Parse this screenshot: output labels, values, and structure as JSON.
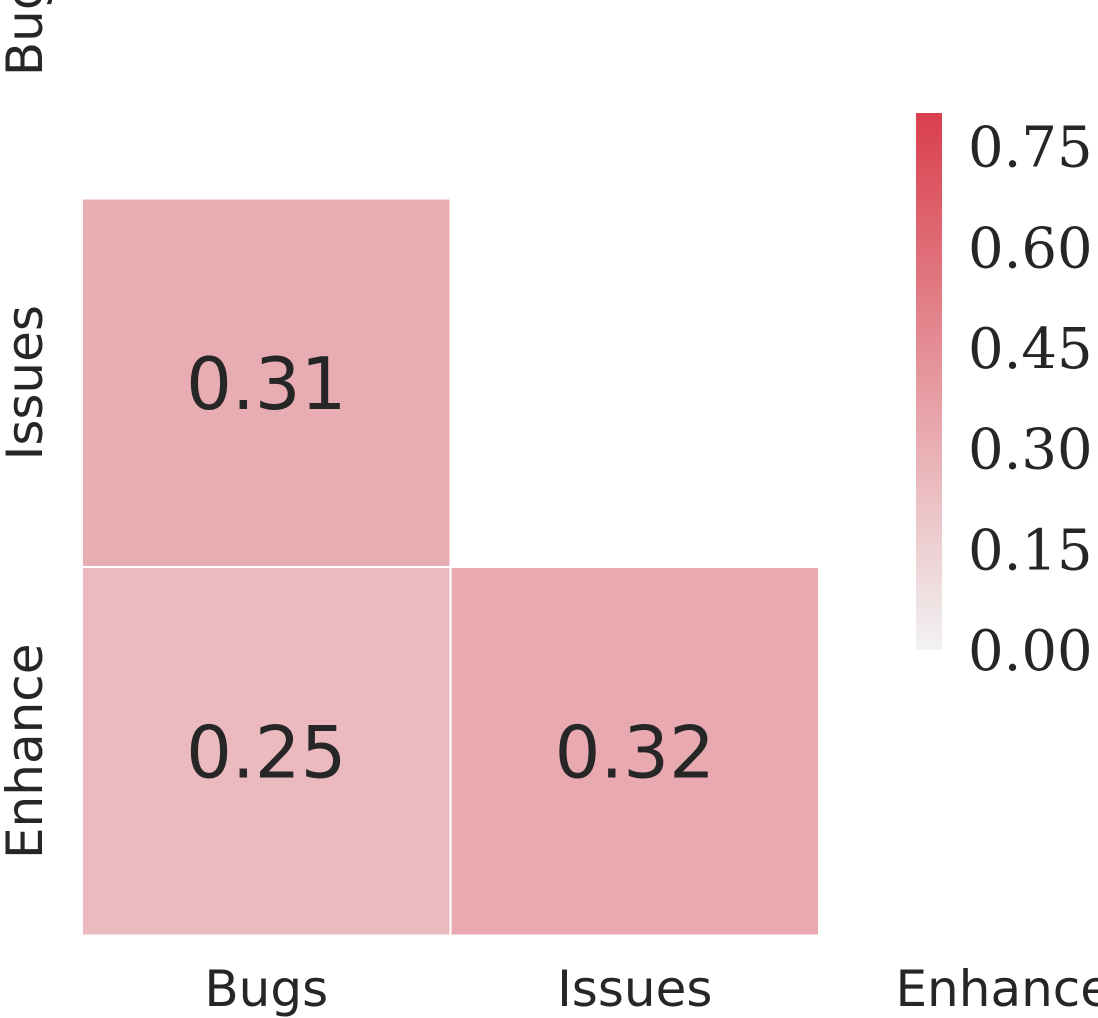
{
  "chart_data": {
    "type": "heatmap",
    "title": "",
    "xlabel": "",
    "ylabel": "",
    "x_categories": [
      "Bugs",
      "Issues",
      "Enhance"
    ],
    "y_categories": [
      "Bugs",
      "Issues",
      "Enhance"
    ],
    "mask": "upper-triangle-including-diagonal",
    "cells": [
      {
        "row": "Issues",
        "col": "Bugs",
        "value": 0.31,
        "label": "0.31"
      },
      {
        "row": "Enhance",
        "col": "Bugs",
        "value": 0.25,
        "label": "0.25"
      },
      {
        "row": "Enhance",
        "col": "Issues",
        "value": 0.32,
        "label": "0.32"
      }
    ],
    "colorbar": {
      "min": 0.0,
      "max": 0.8,
      "ticks": [
        0.0,
        0.15,
        0.3,
        0.45,
        0.6,
        0.75
      ],
      "tick_labels": [
        "0.00",
        "0.15",
        "0.30",
        "0.45",
        "0.60",
        "0.75"
      ],
      "color_low": "#f2f2f2",
      "color_high": "#d93f4c",
      "position": "right"
    },
    "grid": false
  }
}
